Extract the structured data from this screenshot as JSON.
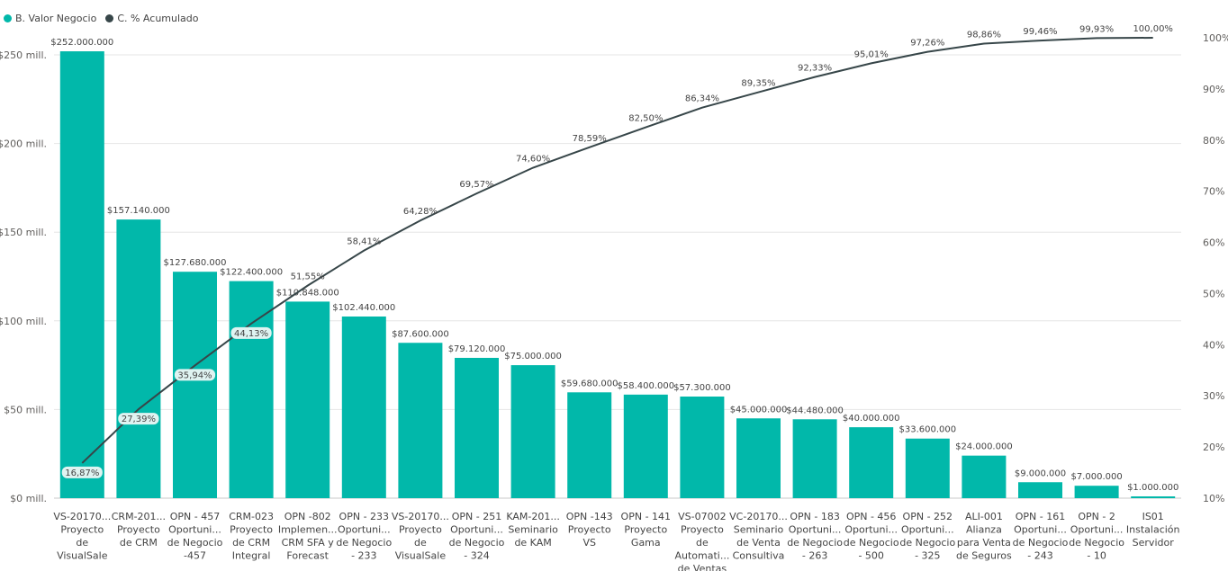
{
  "legend": {
    "series_a": "B. Valor Negocio",
    "series_b": "C. % Acumulado"
  },
  "colors": {
    "bar": "#01b8aa",
    "line": "#374649",
    "grid": "#e6e6e6",
    "label_bg": "#dff3f1"
  },
  "chart_data": {
    "type": "bar",
    "categories": [
      [
        "VS-20170...",
        "Proyecto",
        "de",
        "VisualSale"
      ],
      [
        "CRM-201...",
        "Proyecto",
        "de CRM"
      ],
      [
        "OPN - 457",
        "Oportuni...",
        "de Negocio",
        "-457"
      ],
      [
        "CRM-023",
        "Proyecto",
        "de CRM",
        "Integral"
      ],
      [
        "OPN -802",
        "Implemen...",
        "CRM SFA y",
        "Forecast"
      ],
      [
        "OPN - 233",
        "Oportuni...",
        "de Negocio",
        "- 233"
      ],
      [
        "VS-20170...",
        "Proyecto",
        "de",
        "VisualSale"
      ],
      [
        "OPN - 251",
        "Oportuni...",
        "de Negocio",
        "- 324"
      ],
      [
        "KAM-201...",
        "Seminario",
        "de KAM"
      ],
      [
        "OPN -143",
        "Proyecto",
        "VS"
      ],
      [
        "OPN - 141",
        "Proyecto",
        "Gama"
      ],
      [
        "VS-07002",
        "Proyecto",
        "de",
        "Automati...",
        "de Ventas"
      ],
      [
        "VC-20170...",
        "Seminario",
        "de Venta",
        "Consultiva"
      ],
      [
        "OPN - 183",
        "Oportuni...",
        "de Negocio",
        "- 263"
      ],
      [
        "OPN - 456",
        "Oportuni...",
        "de Negocio",
        "- 500"
      ],
      [
        "OPN - 252",
        "Oportuni...",
        "de Negocio",
        "- 325"
      ],
      [
        "ALI-001",
        "Alianza",
        "para Venta",
        "de Seguros"
      ],
      [
        "OPN - 161",
        "Oportuni...",
        "de Negocio",
        "- 243"
      ],
      [
        "OPN - 2",
        "Oportuni...",
        "de Negocio",
        "- 10"
      ],
      [
        "IS01",
        "Instalación",
        "Servidor"
      ]
    ],
    "series": [
      {
        "name": "B. Valor Negocio",
        "type": "bar",
        "values": [
          252000000,
          157140000,
          127680000,
          122400000,
          110848000,
          102440000,
          87600000,
          79120000,
          75000000,
          59680000,
          58400000,
          57300000,
          45000000,
          44480000,
          40000000,
          33600000,
          24000000,
          9000000,
          7000000,
          1000000
        ],
        "labels": [
          "$252.000.000",
          "$157.140.000",
          "$127.680.000",
          "$122.400.000",
          "$110.848.000",
          "$102.440.000",
          "$87.600.000",
          "$79.120.000",
          "$75.000.000",
          "$59.680.000",
          "$58.400.000",
          "$57.300.000",
          "$45.000.000",
          "$44.480.000",
          "$40.000.000",
          "$33.600.000",
          "$24.000.000",
          "$9.000.000",
          "$7.000.000",
          "$1.000.000"
        ]
      },
      {
        "name": "C. % Acumulado",
        "type": "line",
        "values": [
          16.87,
          27.39,
          35.94,
          44.13,
          51.55,
          58.41,
          64.28,
          69.57,
          74.6,
          78.59,
          82.5,
          86.34,
          89.35,
          92.33,
          95.01,
          97.26,
          98.86,
          99.46,
          99.93,
          100.0
        ],
        "labels": [
          "16,87%",
          "27,39%",
          "35,94%",
          "44,13%",
          "51,55%",
          "58,41%",
          "64,28%",
          "69,57%",
          "74,60%",
          "78,59%",
          "82,50%",
          "86,34%",
          "89,35%",
          "92,33%",
          "95,01%",
          "97,26%",
          "98,86%",
          "99,46%",
          "99,93%",
          "100,00%"
        ]
      }
    ],
    "y_left": {
      "ticks": [
        0,
        50000000,
        100000000,
        150000000,
        200000000,
        250000000
      ],
      "tick_labels": [
        "$0 mill.",
        "$50 mill.",
        "$100 mill.",
        "$150 mill.",
        "$200 mill.",
        "$250 mill."
      ],
      "ylim": [
        0,
        260000000
      ]
    },
    "y_right": {
      "ticks": [
        10,
        20,
        30,
        40,
        50,
        60,
        70,
        80,
        90,
        100
      ],
      "tick_labels": [
        "10%",
        "20%",
        "30%",
        "40%",
        "50%",
        "60%",
        "70%",
        "80%",
        "90%",
        "100%"
      ],
      "ylim": [
        10,
        100
      ]
    },
    "grid": true,
    "legend_position": "top-left"
  }
}
